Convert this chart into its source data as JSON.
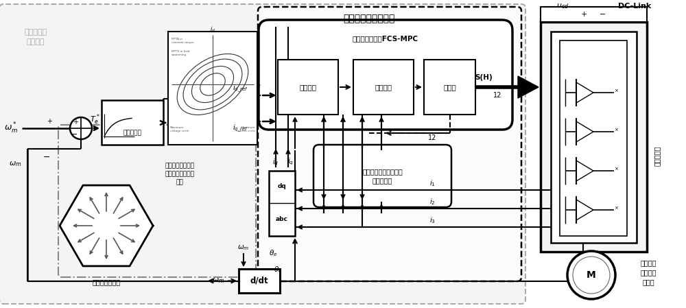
{
  "bg_color": "#ffffff",
  "outer_label_cn": "牵引变流器\n控制策略",
  "thermal_label": "热性能动态优化策略",
  "fcs_mpc_label": "动态热权重系数FCS-MPC",
  "block1_label": "预测模型",
  "block2_label": "奖励函数",
  "block3_label": "最大化",
  "dynamic_weight_label": "基于标准差系数的动态\n热权重系数",
  "torque_lookup_label": "转矩查找表",
  "speed_control_label": "面向内嵌式永磁同\n步电机的速度控制\n策略",
  "voltage_vector_label": "电压空间矢量图",
  "traction_inverter_label": "牵引逆变器",
  "motor_label": "三相内嵌\n式永磁同\n步电机",
  "dc_link_label": "DC-Link"
}
